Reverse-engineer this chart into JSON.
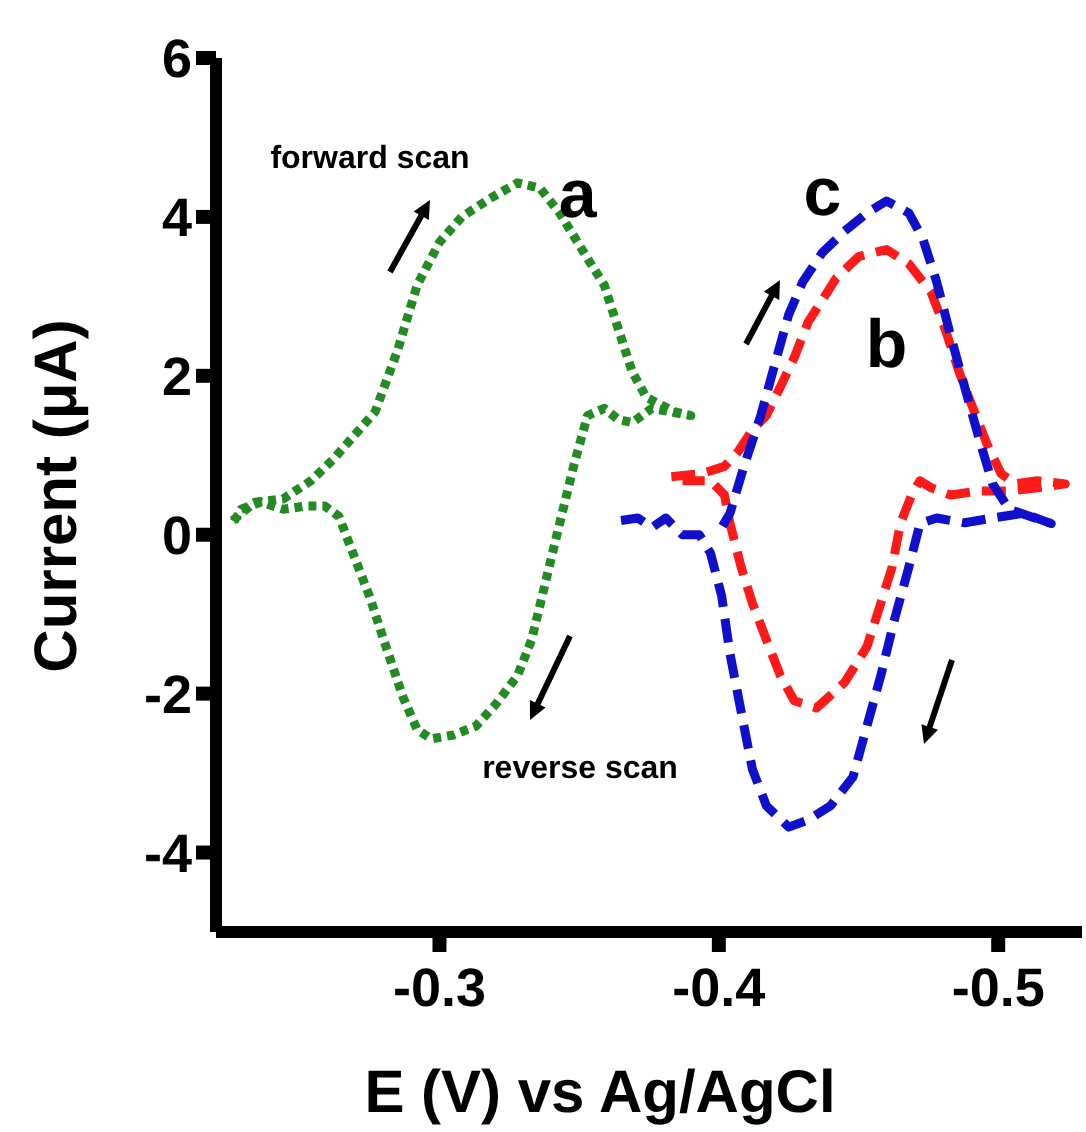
{
  "chart_data": {
    "type": "line",
    "xlabel": "E (V) vs Ag/AgCl",
    "ylabel": "Current (μA)",
    "xlim": [
      -0.22,
      -0.53
    ],
    "xticks": [
      -0.3,
      -0.4,
      -0.5
    ],
    "ylim": [
      -5,
      6
    ],
    "yticks": [
      -4,
      -2,
      0,
      2,
      4,
      6
    ],
    "grid": false,
    "legend": false,
    "marker": "none",
    "annotations": [
      "forward scan",
      "reverse scan"
    ],
    "series": [
      {
        "name": "a",
        "color": "#228b22",
        "line_style": "dotted",
        "x": [
          -0.226,
          -0.234,
          -0.244,
          -0.254,
          -0.262,
          -0.269,
          -0.277,
          -0.285,
          -0.292,
          -0.3,
          -0.308,
          -0.318,
          -0.328,
          -0.336,
          -0.343,
          -0.351,
          -0.359,
          -0.364,
          -0.369,
          -0.374,
          -0.379,
          -0.384,
          -0.39,
          -0.376,
          -0.369,
          -0.364,
          -0.359,
          -0.353,
          -0.348,
          -0.343,
          -0.338,
          -0.333,
          -0.328,
          -0.32,
          -0.313,
          -0.305,
          -0.297,
          -0.292,
          -0.287,
          -0.28,
          -0.275,
          -0.269,
          -0.264,
          -0.259,
          -0.252,
          -0.244,
          -0.236,
          -0.229,
          -0.226
        ],
        "values": [
          0.18,
          0.41,
          0.45,
          0.68,
          0.95,
          1.23,
          1.55,
          2.32,
          3.14,
          3.68,
          4.0,
          4.23,
          4.43,
          4.36,
          4.05,
          3.59,
          3.14,
          2.59,
          2.05,
          1.73,
          1.64,
          1.55,
          1.5,
          1.59,
          1.41,
          1.45,
          1.59,
          1.5,
          0.86,
          0.14,
          -0.59,
          -1.32,
          -1.77,
          -2.14,
          -2.41,
          -2.52,
          -2.57,
          -2.45,
          -2.05,
          -1.32,
          -0.78,
          -0.23,
          0.23,
          0.36,
          0.36,
          0.32,
          0.41,
          0.32,
          0.14
        ]
      },
      {
        "name": "b",
        "color": "#ff1a1a",
        "line_style": "dashed",
        "x": [
          -0.383,
          -0.394,
          -0.402,
          -0.407,
          -0.412,
          -0.417,
          -0.422,
          -0.427,
          -0.432,
          -0.437,
          -0.442,
          -0.45,
          -0.46,
          -0.468,
          -0.476,
          -0.481,
          -0.486,
          -0.491,
          -0.496,
          -0.501,
          -0.506,
          -0.514,
          -0.524,
          -0.514,
          -0.504,
          -0.493,
          -0.483,
          -0.476,
          -0.472,
          -0.469,
          -0.465,
          -0.462,
          -0.458,
          -0.453,
          -0.445,
          -0.435,
          -0.427,
          -0.422,
          -0.417,
          -0.412,
          -0.408,
          -0.404,
          -0.402,
          -0.397,
          -0.387
        ],
        "values": [
          0.73,
          0.77,
          0.86,
          1.05,
          1.32,
          1.5,
          1.86,
          2.23,
          2.68,
          2.95,
          3.23,
          3.5,
          3.59,
          3.41,
          3.05,
          2.59,
          2.05,
          1.59,
          1.14,
          0.77,
          0.64,
          0.68,
          0.64,
          0.59,
          0.55,
          0.55,
          0.5,
          0.59,
          0.68,
          0.5,
          0.14,
          -0.41,
          -0.86,
          -1.41,
          -1.86,
          -2.18,
          -2.09,
          -1.77,
          -1.32,
          -0.86,
          -0.41,
          0.14,
          0.5,
          0.68,
          0.68
        ]
      },
      {
        "name": "c",
        "color": "#1010cc",
        "line_style": "dashed",
        "x": [
          -0.365,
          -0.371,
          -0.376,
          -0.381,
          -0.387,
          -0.393,
          -0.397,
          -0.401,
          -0.404,
          -0.408,
          -0.412,
          -0.417,
          -0.425,
          -0.432,
          -0.44,
          -0.448,
          -0.453,
          -0.458,
          -0.463,
          -0.468,
          -0.472,
          -0.478,
          -0.488,
          -0.498,
          -0.509,
          -0.519,
          -0.504,
          -0.498,
          -0.493,
          -0.488,
          -0.483,
          -0.478,
          -0.473,
          -0.468,
          -0.46,
          -0.453,
          -0.445,
          -0.437,
          -0.43,
          -0.425,
          -0.42,
          -0.415,
          -0.409,
          -0.404,
          -0.401
        ],
        "values": [
          0.18,
          0.21,
          0.09,
          0.21,
          0,
          0,
          -0.23,
          -0.77,
          -1.5,
          -2.23,
          -2.95,
          -3.41,
          -3.68,
          -3.59,
          -3.41,
          -3.05,
          -2.41,
          -1.77,
          -1.05,
          -0.41,
          0.14,
          0.21,
          0.15,
          0.21,
          0.27,
          0.14,
          0.32,
          0.64,
          1.23,
          1.86,
          2.5,
          3.18,
          3.73,
          4.05,
          4.2,
          4.05,
          3.82,
          3.55,
          3.18,
          2.77,
          2.14,
          1.5,
          0.86,
          0.27,
          0.09
        ]
      }
    ]
  }
}
